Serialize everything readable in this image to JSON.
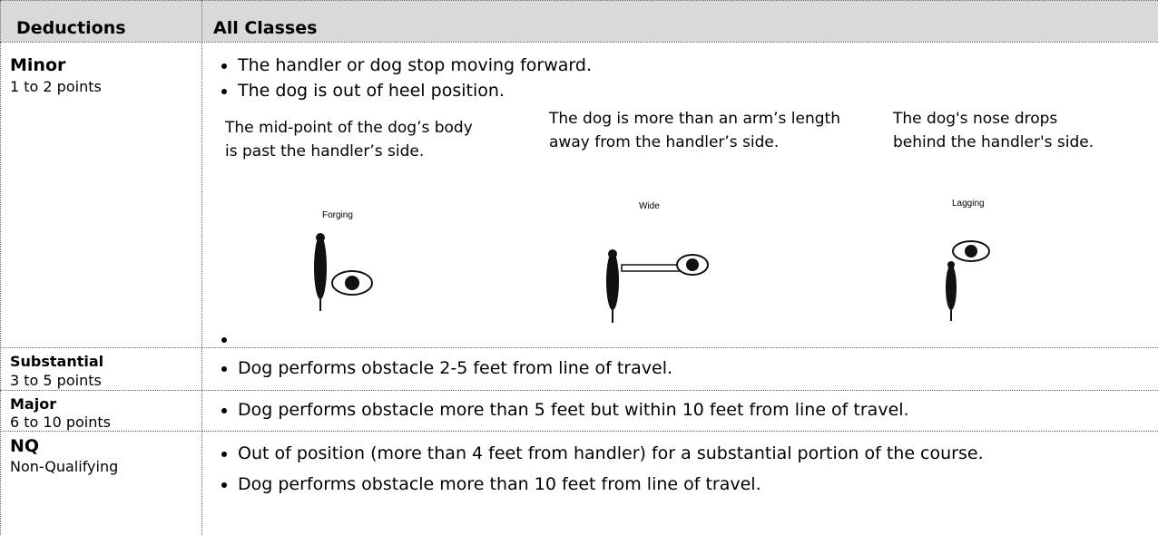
{
  "header": {
    "col1": "Deductions",
    "col2": "All Classes"
  },
  "rows": [
    {
      "label": "Minor",
      "sub": "1 to 2 points",
      "bullets": [
        "The handler or dog stop moving forward.",
        "The dog is out of heel position."
      ],
      "figures": [
        {
          "caption": "The mid-point of the dog’s body is past the handler’s side.",
          "label": "Forging"
        },
        {
          "caption": "The dog is more than an arm’s length away from the handler’s side.",
          "label": "Wide"
        },
        {
          "caption": "The dog's nose drops behind the handler's side.",
          "label": "Lagging"
        }
      ]
    },
    {
      "label": "Substantial",
      "sub": "3 to 5 points",
      "bullets": [
        "Dog performs obstacle 2-5 feet from line of travel."
      ]
    },
    {
      "label": "Major",
      "sub": "6 to 10 points",
      "bullets": [
        "Dog performs obstacle more than 5 feet but within 10 feet from line of travel."
      ]
    },
    {
      "label": "NQ",
      "sub": "Non-Qualifying",
      "bullets": [
        "Out of position (more than 4 feet from handler) for a substantial portion of the course.",
        "Dog performs obstacle more than 10 feet from line of travel."
      ]
    }
  ]
}
